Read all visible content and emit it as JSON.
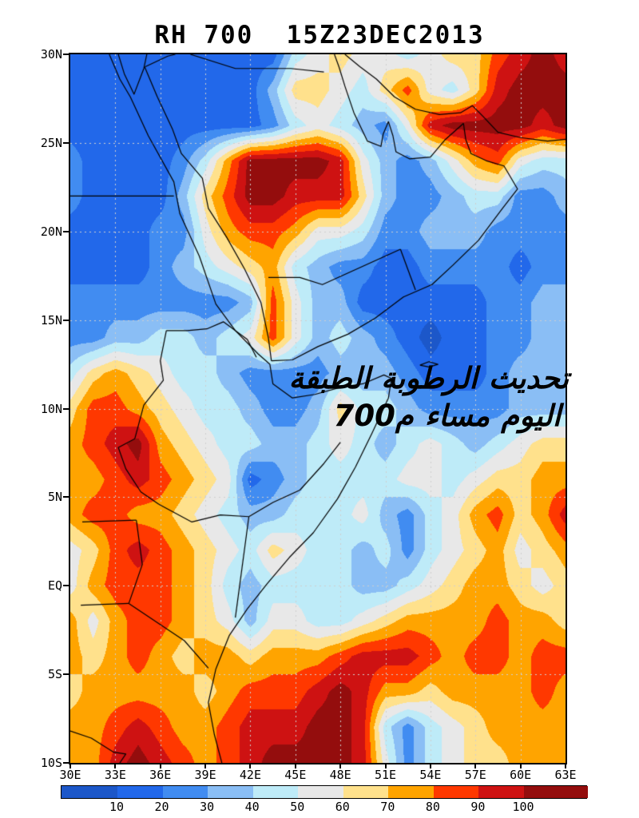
{
  "title": "RH 700  15Z23DEC2013",
  "annotation": {
    "line1_words": [
      "الطبقة",
      "الرطوبة",
      "تحديث"
    ],
    "line2_words": [
      "م700",
      "مساء",
      "اليوم"
    ]
  },
  "chart_data": {
    "type": "heatmap",
    "title": "RH 700  15Z23DEC2013",
    "variable": "RH",
    "level": "700",
    "valid_time": "15Z23DEC2013",
    "x_axis": {
      "ticks": [
        {
          "label": "30E",
          "lon": 30
        },
        {
          "label": "33E",
          "lon": 33
        },
        {
          "label": "36E",
          "lon": 36
        },
        {
          "label": "39E",
          "lon": 39
        },
        {
          "label": "42E",
          "lon": 42
        },
        {
          "label": "45E",
          "lon": 45
        },
        {
          "label": "48E",
          "lon": 48
        },
        {
          "label": "51E",
          "lon": 51
        },
        {
          "label": "54E",
          "lon": 54
        },
        {
          "label": "57E",
          "lon": 57
        },
        {
          "label": "60E",
          "lon": 60
        },
        {
          "label": "63E",
          "lon": 63
        }
      ],
      "range": [
        30,
        63
      ]
    },
    "y_axis": {
      "ticks": [
        {
          "label": "30N",
          "lat": 30
        },
        {
          "label": "25N",
          "lat": 25
        },
        {
          "label": "20N",
          "lat": 20
        },
        {
          "label": "15N",
          "lat": 15
        },
        {
          "label": "10N",
          "lat": 10
        },
        {
          "label": "5N",
          "lat": 5
        },
        {
          "label": "EQ",
          "lat": 0
        },
        {
          "label": "5S",
          "lat": -5
        },
        {
          "label": "10S",
          "lat": -10
        }
      ],
      "range": [
        -10,
        30
      ]
    },
    "gridlines": {
      "lats": [
        25,
        20,
        15,
        10,
        5,
        0,
        -5
      ],
      "lons": [
        33,
        36,
        39,
        42,
        45,
        48,
        51,
        54,
        57,
        60
      ],
      "color": "#CFCFCF"
    },
    "colorbar": {
      "labels": [
        "10",
        "20",
        "30",
        "40",
        "50",
        "60",
        "70",
        "80",
        "90",
        "100"
      ],
      "thresholds": [
        10,
        20,
        30,
        40,
        50,
        60,
        70,
        80,
        90,
        100
      ],
      "colors": [
        "#1C57C9",
        "#2268EA",
        "#418CF1",
        "#8ABEF5",
        "#BEEBF8",
        "#E8E8E8",
        "#FFE18C",
        "#FFA400",
        "#FF3800",
        "#CE1212",
        "#940D0D"
      ]
    },
    "grid": {
      "lon_start": 30,
      "lon_step": 1.5,
      "lat_start": 30,
      "lat_step": -2,
      "values": [
        [
          15,
          15,
          15,
          15,
          15,
          15,
          15,
          15,
          15,
          15,
          45,
          55,
          65,
          55,
          55,
          45,
          55,
          65,
          65,
          85,
          95,
          105,
          95
        ],
        [
          15,
          15,
          15,
          15,
          15,
          15,
          15,
          15,
          15,
          35,
          65,
          65,
          55,
          45,
          65,
          85,
          55,
          45,
          65,
          95,
          105,
          105,
          105
        ],
        [
          15,
          15,
          15,
          15,
          15,
          15,
          15,
          15,
          15,
          25,
          45,
          55,
          45,
          35,
          25,
          55,
          95,
          105,
          105,
          105,
          105,
          95,
          105
        ],
        [
          25,
          15,
          15,
          15,
          15,
          25,
          45,
          75,
          105,
          105,
          105,
          105,
          95,
          55,
          35,
          25,
          35,
          55,
          75,
          85,
          55,
          45,
          45
        ],
        [
          25,
          15,
          15,
          15,
          15,
          35,
          65,
          85,
          105,
          105,
          95,
          95,
          95,
          65,
          35,
          25,
          25,
          35,
          45,
          45,
          25,
          25,
          35
        ],
        [
          15,
          15,
          15,
          15,
          25,
          25,
          55,
          75,
          85,
          85,
          75,
          55,
          55,
          45,
          25,
          25,
          35,
          35,
          35,
          25,
          25,
          25,
          25
        ],
        [
          15,
          15,
          15,
          15,
          25,
          35,
          45,
          55,
          65,
          75,
          45,
          35,
          25,
          25,
          15,
          15,
          25,
          25,
          25,
          25,
          15,
          25,
          25
        ],
        [
          25,
          25,
          25,
          25,
          25,
          25,
          25,
          25,
          35,
          85,
          55,
          35,
          35,
          15,
          15,
          15,
          15,
          15,
          15,
          25,
          25,
          35,
          35
        ],
        [
          25,
          25,
          35,
          35,
          45,
          45,
          35,
          45,
          55,
          85,
          55,
          35,
          45,
          35,
          25,
          15,
          5,
          15,
          15,
          25,
          25,
          35,
          35
        ],
        [
          45,
          65,
          75,
          65,
          55,
          45,
          45,
          35,
          25,
          25,
          25,
          25,
          35,
          35,
          35,
          25,
          15,
          15,
          15,
          25,
          35,
          35,
          35
        ],
        [
          65,
          85,
          85,
          75,
          65,
          55,
          45,
          45,
          35,
          25,
          25,
          35,
          65,
          45,
          45,
          35,
          25,
          25,
          25,
          25,
          35,
          35,
          35
        ],
        [
          75,
          85,
          95,
          105,
          75,
          65,
          55,
          45,
          45,
          35,
          35,
          45,
          55,
          45,
          35,
          45,
          55,
          45,
          35,
          45,
          55,
          65,
          65
        ],
        [
          75,
          75,
          85,
          95,
          85,
          75,
          65,
          55,
          15,
          25,
          35,
          45,
          45,
          45,
          45,
          55,
          55,
          45,
          55,
          65,
          65,
          75,
          75
        ],
        [
          75,
          85,
          85,
          75,
          75,
          65,
          55,
          45,
          35,
          35,
          45,
          45,
          45,
          55,
          35,
          25,
          45,
          55,
          75,
          85,
          65,
          75,
          95
        ],
        [
          55,
          65,
          85,
          95,
          85,
          75,
          65,
          55,
          45,
          65,
          55,
          45,
          45,
          35,
          45,
          25,
          45,
          55,
          65,
          75,
          55,
          65,
          75
        ],
        [
          55,
          75,
          85,
          85,
          85,
          75,
          65,
          45,
          35,
          45,
          45,
          45,
          45,
          35,
          35,
          45,
          55,
          65,
          75,
          75,
          65,
          55,
          65
        ],
        [
          75,
          55,
          75,
          85,
          85,
          75,
          65,
          55,
          35,
          55,
          55,
          45,
          45,
          55,
          65,
          75,
          75,
          75,
          75,
          85,
          75,
          75,
          65
        ],
        [
          75,
          65,
          75,
          85,
          75,
          65,
          75,
          75,
          65,
          75,
          75,
          75,
          85,
          95,
          95,
          95,
          85,
          75,
          85,
          85,
          75,
          85,
          85
        ],
        [
          65,
          75,
          75,
          75,
          75,
          75,
          65,
          75,
          85,
          85,
          85,
          95,
          105,
          95,
          75,
          75,
          65,
          75,
          75,
          75,
          75,
          85,
          75
        ],
        [
          75,
          75,
          85,
          95,
          85,
          75,
          75,
          85,
          95,
          95,
          95,
          105,
          105,
          95,
          45,
          25,
          45,
          55,
          65,
          75,
          75,
          75,
          75
        ],
        [
          75,
          75,
          95,
          105,
          95,
          85,
          75,
          85,
          95,
          105,
          105,
          105,
          105,
          95,
          55,
          25,
          45,
          55,
          65,
          65,
          75,
          75,
          75
        ]
      ]
    },
    "map_outlines": [
      [
        [
          32.6,
          30
        ],
        [
          33.3,
          28.6
        ],
        [
          34.0,
          27.6
        ],
        [
          35.2,
          25.4
        ],
        [
          36.9,
          22.8
        ],
        [
          37.3,
          21.0
        ],
        [
          38.6,
          18.6
        ],
        [
          39.7,
          15.9
        ],
        [
          41.0,
          14.4
        ],
        [
          42.5,
          13.1
        ],
        [
          43.3,
          12.5
        ]
      ],
      [
        [
          33.2,
          30
        ],
        [
          33.6,
          28.9
        ],
        [
          34.25,
          27.75
        ],
        [
          34.9,
          29.2
        ],
        [
          35.1,
          30
        ]
      ],
      [
        [
          34.95,
          29.3
        ],
        [
          35.8,
          27.6
        ],
        [
          36.8,
          25.8
        ],
        [
          37.4,
          24.4
        ],
        [
          38.8,
          23.0
        ],
        [
          39.2,
          21.3
        ],
        [
          40.4,
          19.7
        ],
        [
          41.6,
          17.9
        ],
        [
          42.7,
          16.0
        ],
        [
          43.2,
          14.0
        ],
        [
          43.4,
          12.7
        ]
      ],
      [
        [
          43.4,
          12.7
        ],
        [
          44.8,
          12.75
        ],
        [
          46.5,
          13.5
        ],
        [
          48.5,
          14.2
        ],
        [
          50.3,
          15.1
        ],
        [
          52.2,
          16.3
        ],
        [
          54.1,
          17.0
        ],
        [
          55.5,
          18.1
        ],
        [
          57.2,
          19.5
        ],
        [
          58.8,
          21.3
        ],
        [
          59.8,
          22.4
        ],
        [
          58.9,
          23.7
        ],
        [
          57.7,
          24.0
        ],
        [
          56.7,
          24.4
        ],
        [
          56.35,
          25.2
        ],
        [
          56.2,
          26.1
        ]
      ],
      [
        [
          56.2,
          26.1
        ],
        [
          55.0,
          25.2
        ],
        [
          54.0,
          24.2
        ],
        [
          52.6,
          24.1
        ],
        [
          51.7,
          24.5
        ],
        [
          51.5,
          25.4
        ],
        [
          51.2,
          26.2
        ],
        [
          50.85,
          25.5
        ],
        [
          50.7,
          24.8
        ],
        [
          49.8,
          25.1
        ],
        [
          48.9,
          26.7
        ],
        [
          48.3,
          28.2
        ],
        [
          47.9,
          29.3
        ],
        [
          47.6,
          30
        ]
      ],
      [
        [
          48.3,
          30
        ],
        [
          49.3,
          29.3
        ],
        [
          50.4,
          28.6
        ],
        [
          51.6,
          27.6
        ],
        [
          53.0,
          26.9
        ],
        [
          54.6,
          26.6
        ],
        [
          56.0,
          26.7
        ],
        [
          56.8,
          27.1
        ],
        [
          57.5,
          26.5
        ],
        [
          58.5,
          25.6
        ],
        [
          60.0,
          25.3
        ],
        [
          61.8,
          25.1
        ],
        [
          63,
          25.2
        ]
      ],
      [
        [
          43.3,
          12.5
        ],
        [
          43.5,
          11.4
        ],
        [
          44.8,
          10.6
        ],
        [
          46.3,
          10.8
        ],
        [
          48.0,
          11.2
        ],
        [
          49.5,
          11.4
        ],
        [
          50.9,
          11.9
        ],
        [
          51.4,
          11.7
        ],
        [
          51.2,
          10.6
        ],
        [
          50.1,
          8.6
        ],
        [
          49.0,
          6.7
        ],
        [
          47.8,
          4.9
        ],
        [
          46.2,
          3.0
        ],
        [
          44.6,
          1.6
        ],
        [
          43.1,
          0.1
        ],
        [
          41.8,
          -1.3
        ],
        [
          40.6,
          -2.8
        ],
        [
          39.7,
          -4.7
        ],
        [
          39.2,
          -6.6
        ],
        [
          39.6,
          -8.4
        ],
        [
          40.1,
          -10
        ]
      ],
      [
        [
          53.3,
          12.45
        ],
        [
          53.9,
          12.65
        ],
        [
          54.5,
          12.5
        ],
        [
          53.9,
          12.35
        ],
        [
          53.3,
          12.45
        ]
      ],
      [
        [
          30,
          22
        ],
        [
          36.9,
          22
        ]
      ],
      [
        [
          35.0,
          29.3
        ],
        [
          36.5,
          29.9
        ],
        [
          37.0,
          30
        ]
      ],
      [
        [
          38.0,
          30
        ],
        [
          41.0,
          29.2
        ],
        [
          44.7,
          29.2
        ],
        [
          46.9,
          29.0
        ]
      ],
      [
        [
          43.2,
          17.4
        ],
        [
          45.3,
          17.4
        ],
        [
          46.8,
          17.0
        ],
        [
          52.0,
          19.0
        ]
      ],
      [
        [
          52.0,
          19.0
        ],
        [
          53.0,
          16.7
        ]
      ],
      [
        [
          36.4,
          14.4
        ],
        [
          37.8,
          14.4
        ],
        [
          39.1,
          14.5
        ],
        [
          40.2,
          14.9
        ],
        [
          41.8,
          13.9
        ],
        [
          42.4,
          12.9
        ]
      ],
      [
        [
          36.4,
          14.4
        ],
        [
          36.0,
          12.7
        ],
        [
          36.2,
          11.6
        ],
        [
          34.9,
          10.2
        ],
        [
          34.3,
          8.3
        ],
        [
          33.2,
          7.8
        ],
        [
          33.7,
          6.6
        ],
        [
          34.7,
          5.3
        ],
        [
          35.9,
          4.6
        ]
      ],
      [
        [
          41.9,
          3.9
        ],
        [
          43.5,
          4.7
        ],
        [
          45.3,
          5.4
        ],
        [
          46.9,
          6.9
        ],
        [
          48.0,
          8.1
        ]
      ],
      [
        [
          41.0,
          -1.8
        ],
        [
          41.9,
          3.9
        ]
      ],
      [
        [
          35.9,
          4.6
        ],
        [
          38.1,
          3.6
        ],
        [
          40.0,
          4.0
        ],
        [
          41.9,
          3.9
        ]
      ],
      [
        [
          30.8,
          3.6
        ],
        [
          34.4,
          3.7
        ]
      ],
      [
        [
          34.4,
          3.7
        ],
        [
          34.8,
          1.2
        ],
        [
          33.9,
          -1.0
        ]
      ],
      [
        [
          30.7,
          -1.1
        ],
        [
          33.9,
          -1.0
        ]
      ],
      [
        [
          33.9,
          -1.0
        ],
        [
          37.6,
          -3.1
        ],
        [
          39.2,
          -4.65
        ]
      ],
      [
        [
          30,
          -8.2
        ],
        [
          31.4,
          -8.6
        ],
        [
          32.9,
          -9.4
        ],
        [
          33.7,
          -9.5
        ],
        [
          33.3,
          -10
        ]
      ]
    ]
  }
}
